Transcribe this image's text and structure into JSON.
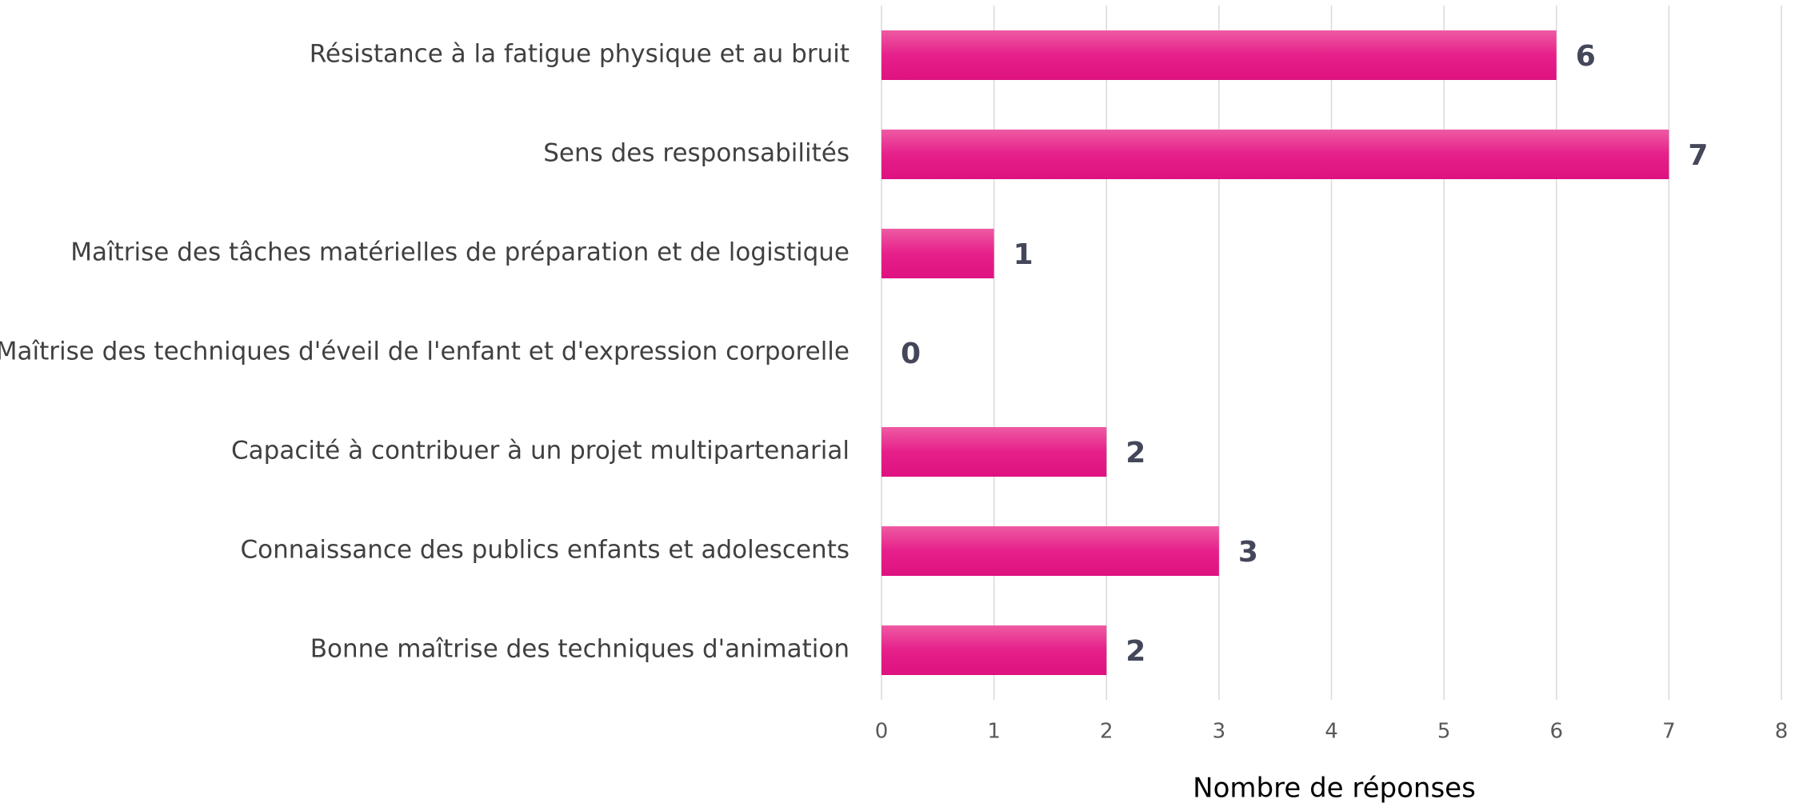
{
  "chart_data": {
    "type": "bar",
    "orientation": "horizontal",
    "categories": [
      "Résistance à la fatigue physique et au bruit",
      "Sens des responsabilités",
      "Maîtrise des tâches matérielles de préparation et de logistique",
      "Maîtrise des techniques d'éveil de l'enfant et d'expression corporelle",
      "Capacité à contribuer à un projet multipartenarial",
      "Connaissance des publics enfants et adolescents",
      "Bonne maîtrise des techniques d'animation"
    ],
    "values": [
      6,
      7,
      1,
      0,
      2,
      3,
      2
    ],
    "color": "#e6208a",
    "xlabel": "Nombre de réponses",
    "xlim": [
      0,
      8
    ],
    "xticks": [
      0,
      1,
      2,
      3,
      4,
      5,
      6,
      7,
      8
    ],
    "grid": true
  }
}
